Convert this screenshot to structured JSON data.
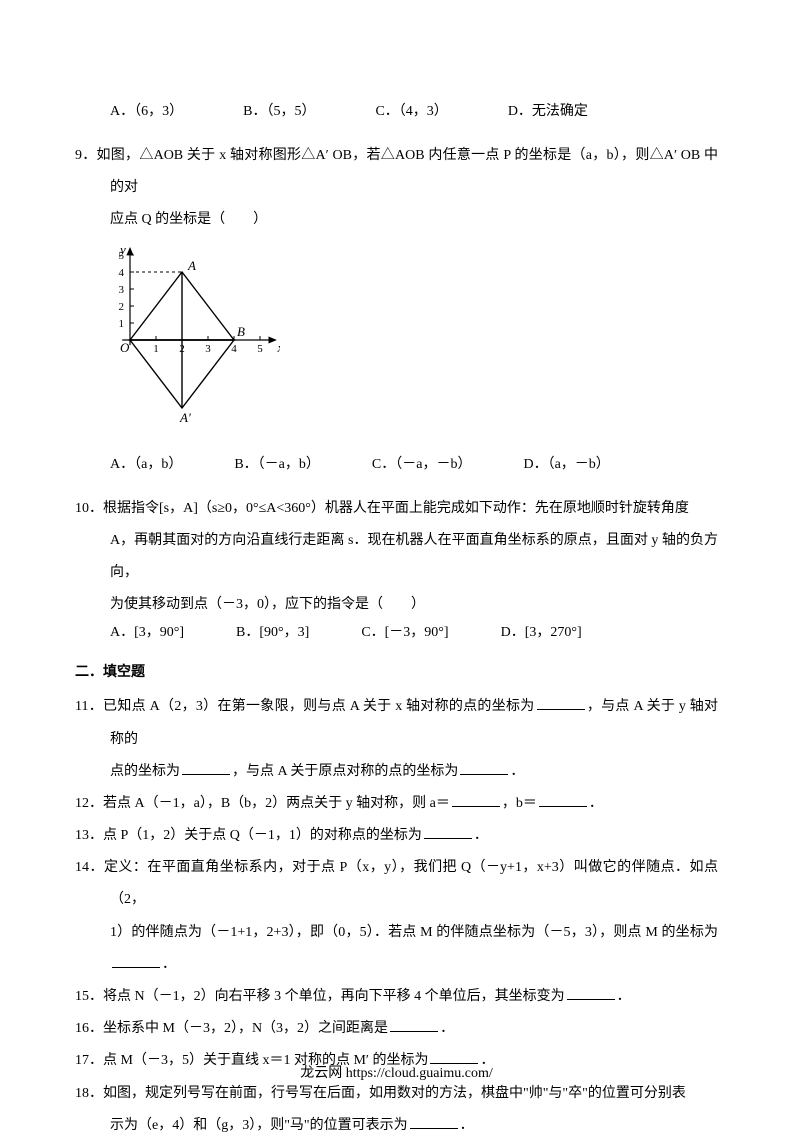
{
  "q8_options": {
    "a": "A．（6，3）",
    "b": "B．（5，5）",
    "c": "C．（4，3）",
    "d": "D．无法确定"
  },
  "q9": {
    "stem_l1": "9．如图，△AOB 关于 x 轴对称图形△A′ OB，若△AOB 内任意一点 P 的坐标是（a，b），则△A′ OB 中的对",
    "stem_l2": "应点 Q 的坐标是（　　）",
    "opts": {
      "a": "A．（a，b）",
      "b": "B．（－a，b）",
      "c": "C．（－a，－b）",
      "d": "D．（a，－b）"
    },
    "diagram": {
      "width": 170,
      "height": 195,
      "axis_color": "#000000",
      "stroke_width": 1.2,
      "bg": "#ffffff",
      "x_ticks": [
        1,
        2,
        3,
        4,
        5
      ],
      "y_ticks": [
        1,
        2,
        3,
        4,
        5
      ],
      "A": [
        2,
        4
      ],
      "Ap": [
        2,
        -4
      ],
      "B": [
        4,
        0
      ],
      "O": [
        0,
        0
      ],
      "label_A": "A",
      "label_Ap": "A′",
      "label_B": "B",
      "label_O": "O",
      "label_x": "x",
      "label_y": "y"
    }
  },
  "q10": {
    "l1": "10．根据指令[s，A]（s≥0，0°≤A<360°）机器人在平面上能完成如下动作：先在原地顺时针旋转角度",
    "l2": "A，再朝其面对的方向沿直线行走距离 s．现在机器人在平面直角坐标系的原点，且面对 y 轴的负方向，",
    "l3": "为使其移动到点（－3，0），应下的指令是（　　）",
    "opts": {
      "a": "A．[3，90°]",
      "b": "B．[90°，3]",
      "c": "C．[－3，90°]",
      "d": "D．[3，270°]"
    }
  },
  "section2": "二．填空题",
  "q11": {
    "l1_pre": "11．已知点 A（2，3）在第一象限，则与点 A 关于 x 轴对称的点的坐标为",
    "l1_post": "，与点 A 关于 y 轴对称的",
    "l2_pre": "点的坐标为",
    "l2_mid": "，与点 A 关于原点对称的点的坐标为",
    "l2_post": "．"
  },
  "q12": {
    "pre": "12．若点 A（－1，a），B（b，2）两点关于 y 轴对称，则 a＝",
    "mid": "，b＝",
    "post": "．"
  },
  "q13": {
    "pre": "13．点 P（1，2）关于点 Q（－1，1）的对称点的坐标为",
    "post": "．"
  },
  "q14": {
    "l1": "14．定义：在平面直角坐标系内，对于点 P（x，y），我们把 Q（－y+1，x+3）叫做它的伴随点．如点（2，",
    "l2_pre": "1）的伴随点为（－1+1，2+3），即（0，5）．若点 M 的伴随点坐标为（－5，3），则点 M 的坐标为",
    "l2_post": "．"
  },
  "q15": {
    "pre": "15．将点 N（－1，2）向右平移 3 个单位，再向下平移 4 个单位后，其坐标变为",
    "post": "．"
  },
  "q16": {
    "pre": "16．坐标系中 M（－3，2），N（3，2）之间距离是",
    "post": "．"
  },
  "q17": {
    "pre": "17．点 M（－3，5）关于直线 x＝1 对称的点 M′ 的坐标为",
    "post": "．"
  },
  "q18": {
    "l1": "18．如图，规定列号写在前面，行号写在后面，如用数对的方法，棋盘中\"帅\"与\"卒\"的位置可分别表",
    "l2_pre": "示为（e，4）和（g，3），则\"马\"的位置可表示为",
    "l2_post": "．"
  },
  "footer": "龙云网 https://cloud.guaimu.com/"
}
